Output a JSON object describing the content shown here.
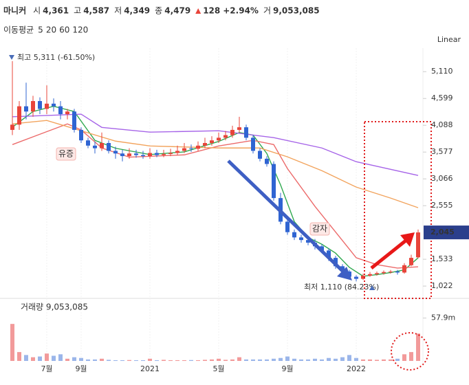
{
  "chart_data": {
    "type": "candlestick",
    "header": {
      "name": "마니커",
      "fields": [
        {
          "label": "시",
          "value": "4,361"
        },
        {
          "label": "고",
          "value": "4,587"
        },
        {
          "label": "저",
          "value": "4,349"
        },
        {
          "label": "종",
          "value": "4,479"
        }
      ],
      "change": "128",
      "change_pct": "+2.94%",
      "volume_label": "거",
      "volume": "9,053,085"
    },
    "ma_title": "이동평균",
    "scale_mode": "Linear",
    "categories": [
      null,
      null,
      null,
      null,
      null,
      "7월",
      null,
      null,
      null,
      null,
      "9월",
      null,
      null,
      null,
      null,
      null,
      null,
      null,
      null,
      null,
      "2021",
      null,
      null,
      null,
      null,
      null,
      null,
      null,
      null,
      null,
      "5월",
      null,
      null,
      null,
      null,
      null,
      null,
      null,
      null,
      null,
      "9월",
      null,
      null,
      null,
      null,
      null,
      null,
      null,
      null,
      null,
      "2022",
      null,
      null,
      null,
      null,
      null,
      null,
      null,
      null,
      null
    ],
    "up_color": "#e8443a",
    "down_color": "#2f64d2",
    "open": [
      4000,
      4100,
      4450,
      4350,
      4550,
      4400,
      4500,
      4450,
      4300,
      4350,
      4000,
      3800,
      3700,
      3650,
      3750,
      3600,
      3550,
      3500,
      3550,
      3520,
      3500,
      3560,
      3520,
      3540,
      3560,
      3600,
      3650,
      3640,
      3700,
      3750,
      3800,
      3850,
      3900,
      4000,
      4050,
      3850,
      3600,
      3450,
      3350,
      2700,
      2250,
      2050,
      1950,
      1900,
      1850,
      1780,
      1700,
      1560,
      1400,
      1300,
      1200,
      1160,
      1220,
      1250,
      1270,
      1290,
      1300,
      1280,
      1420,
      1570
    ],
    "high": [
      5311,
      4550,
      4900,
      4650,
      4620,
      4850,
      4600,
      4550,
      4400,
      4400,
      4050,
      3850,
      3780,
      3950,
      3800,
      3680,
      3620,
      3650,
      3620,
      3600,
      3650,
      3620,
      3620,
      3640,
      3700,
      3750,
      3720,
      3780,
      3850,
      3880,
      3950,
      3980,
      4080,
      4250,
      4100,
      3900,
      3650,
      3500,
      3400,
      2800,
      2300,
      2100,
      2000,
      1980,
      1920,
      1820,
      1740,
      1600,
      1440,
      1330,
      1230,
      1260,
      1290,
      1300,
      1320,
      1330,
      1330,
      1460,
      1620,
      2100
    ],
    "low": [
      3900,
      4000,
      4200,
      4250,
      4300,
      4300,
      4350,
      4200,
      4200,
      3950,
      3750,
      3650,
      3550,
      3600,
      3550,
      3450,
      3400,
      3450,
      3470,
      3450,
      3450,
      3480,
      3480,
      3500,
      3520,
      3560,
      3580,
      3600,
      3650,
      3700,
      3750,
      3800,
      3850,
      3950,
      3800,
      3550,
      3400,
      3300,
      2650,
      2200,
      2000,
      1900,
      1850,
      1800,
      1720,
      1650,
      1500,
      1350,
      1250,
      1150,
      1110,
      1140,
      1200,
      1220,
      1240,
      1260,
      1240,
      1260,
      1400,
      1550
    ],
    "close": [
      4100,
      4450,
      4350,
      4550,
      4400,
      4500,
      4450,
      4300,
      4350,
      4000,
      3800,
      3700,
      3650,
      3750,
      3600,
      3550,
      3500,
      3550,
      3520,
      3500,
      3560,
      3520,
      3540,
      3560,
      3600,
      3650,
      3640,
      3700,
      3750,
      3800,
      3850,
      3900,
      4000,
      4050,
      3850,
      3600,
      3450,
      3350,
      2700,
      2250,
      2050,
      1950,
      1900,
      1850,
      1780,
      1700,
      1560,
      1400,
      1300,
      1200,
      1160,
      1220,
      1250,
      1270,
      1290,
      1300,
      1280,
      1420,
      1560,
      2045
    ],
    "moving_averages": [
      {
        "name": "5",
        "color": "#2fa84f",
        "x": [
          0,
          3,
          6,
          9,
          12,
          15,
          20,
          25,
          30,
          33,
          35,
          37,
          39,
          41,
          43,
          45,
          47,
          49,
          51,
          53,
          55,
          57,
          59
        ],
        "values": [
          4050,
          4350,
          4450,
          4350,
          3800,
          3650,
          3530,
          3580,
          3780,
          3950,
          3900,
          3550,
          2950,
          2250,
          1950,
          1820,
          1650,
          1380,
          1210,
          1240,
          1280,
          1330,
          1560
        ]
      },
      {
        "name": "20",
        "color": "#ec6a6a",
        "x": [
          0,
          4,
          8,
          10,
          13,
          17,
          25,
          30,
          35,
          38,
          40,
          44,
          48,
          50,
          53,
          56,
          59
        ],
        "values": [
          3720,
          3917,
          4114,
          4000,
          3655,
          3480,
          3524,
          3694,
          3800,
          3720,
          3262,
          2542,
          1890,
          1562,
          1431,
          1365,
          1390
        ]
      },
      {
        "name": "60",
        "color": "#f2a35c",
        "x": [
          0,
          5,
          10,
          15,
          20,
          30,
          36,
          40,
          45,
          50,
          55,
          59
        ],
        "values": [
          4114,
          4180,
          3983,
          3786,
          3694,
          3655,
          3655,
          3486,
          3223,
          2909,
          2700,
          2516
        ]
      },
      {
        "name": "120",
        "color": "#a664e8",
        "x": [
          0,
          10,
          13,
          20,
          30,
          38,
          45,
          50,
          59
        ],
        "values": [
          4250,
          4300,
          4048,
          3957,
          3983,
          3852,
          3655,
          3393,
          3131
        ]
      }
    ],
    "ylim": [
      840,
      5690
    ],
    "yticks": [
      {
        "value": 1022,
        "label": "1,022"
      },
      {
        "value": 1533,
        "label": "1,533"
      },
      {
        "value": 2555,
        "label": "2,555"
      },
      {
        "value": 3066,
        "label": "3,066"
      },
      {
        "value": 3577,
        "label": "3,577"
      },
      {
        "value": 4088,
        "label": "4,088"
      },
      {
        "value": 4599,
        "label": "4,599"
      },
      {
        "value": 5110,
        "label": "5,110"
      }
    ],
    "current_price": {
      "value": 2045,
      "label": "2,045"
    },
    "annotations": {
      "high": "최고 5,311 (-61.50%)",
      "low": "최저 1,110 (84.23%)",
      "rights_issue": "유증",
      "reduction": "감자"
    },
    "volume_title": "거래량 9,053,085",
    "volume": [
      50,
      12,
      8,
      5,
      6,
      10,
      7,
      9,
      3,
      5,
      4,
      2,
      2,
      3,
      1.5,
      1,
      1,
      1.2,
      1,
      1,
      3,
      1,
      1.5,
      1,
      1,
      1,
      1.2,
      1,
      1.5,
      2,
      3,
      1.5,
      2,
      5,
      2,
      2,
      2,
      2,
      3,
      4,
      6,
      3,
      2,
      2,
      3,
      2,
      4,
      3,
      5,
      8,
      4,
      2,
      2,
      1.5,
      2,
      2,
      3,
      9,
      12,
      37
    ],
    "volume_ylim": [
      0,
      65
    ],
    "volume_ticks": [
      {
        "value": 57.9,
        "label": "57.9m"
      }
    ]
  }
}
